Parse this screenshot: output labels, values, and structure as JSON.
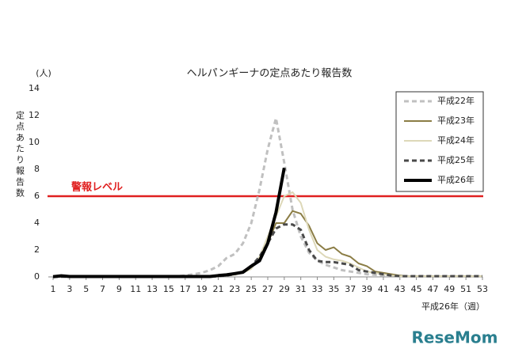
{
  "chart_data": {
    "type": "line",
    "title": "ヘルパンギーナの定点あたり報告数",
    "y_unit": "(人)",
    "y_label": "定点あたり報告数",
    "x_label": "平成26年（週）",
    "watermark": "ReseMom",
    "xlim": [
      1,
      53
    ],
    "xticks": [
      1,
      3,
      5,
      7,
      9,
      11,
      13,
      15,
      17,
      19,
      21,
      23,
      25,
      27,
      29,
      31,
      33,
      35,
      37,
      39,
      41,
      43,
      45,
      47,
      49,
      51,
      53
    ],
    "ylim": [
      0,
      14
    ],
    "yticks": [
      0,
      2,
      4,
      6,
      8,
      10,
      12,
      14
    ],
    "threshold": {
      "value": 6,
      "label": "警報レベル",
      "color": "#e02020"
    },
    "x": [
      1,
      2,
      3,
      4,
      5,
      6,
      7,
      8,
      9,
      10,
      11,
      12,
      13,
      14,
      15,
      16,
      17,
      18,
      19,
      20,
      21,
      22,
      23,
      24,
      25,
      26,
      27,
      28,
      29,
      30,
      31,
      32,
      33,
      34,
      35,
      36,
      37,
      38,
      39,
      40,
      41,
      42,
      43,
      44,
      45,
      46,
      47,
      48,
      49,
      50,
      51,
      52,
      53
    ],
    "series": [
      {
        "name": "平成22年",
        "color": "#c0c0c0",
        "dashed": true,
        "width": 3,
        "values": [
          0.05,
          0.05,
          0.05,
          0.05,
          0.05,
          0.05,
          0.05,
          0.05,
          0.05,
          0.05,
          0.05,
          0.05,
          0.05,
          0.05,
          0.05,
          0.05,
          0.1,
          0.2,
          0.3,
          0.5,
          0.8,
          1.4,
          1.7,
          2.5,
          4.0,
          6.5,
          9.5,
          11.8,
          8.5,
          5.0,
          3.0,
          1.8,
          1.2,
          0.9,
          0.7,
          0.5,
          0.4,
          0.3,
          0.2,
          0.15,
          0.1,
          0.1,
          0.05,
          0.05,
          0.05,
          0.05,
          0.05,
          0.05,
          0.05,
          0.05,
          0.05,
          0.05,
          0.05
        ]
      },
      {
        "name": "平成23年",
        "color": "#8b7d45",
        "dashed": false,
        "width": 2,
        "values": [
          0.02,
          0.02,
          0.02,
          0.02,
          0.02,
          0.02,
          0.02,
          0.02,
          0.02,
          0.02,
          0.02,
          0.02,
          0.02,
          0.02,
          0.02,
          0.02,
          0.02,
          0.02,
          0.02,
          0.02,
          0.05,
          0.1,
          0.2,
          0.3,
          0.7,
          1.3,
          2.5,
          4.0,
          4.0,
          4.9,
          4.7,
          3.8,
          2.5,
          2.0,
          2.2,
          1.7,
          1.5,
          1.0,
          0.8,
          0.4,
          0.3,
          0.2,
          0.1,
          0.05,
          0.05,
          0.05,
          0.05,
          0.05,
          0.05,
          0.05,
          0.05,
          0.05,
          0.05
        ]
      },
      {
        "name": "平成24年",
        "color": "#ddd8b8",
        "dashed": false,
        "width": 2,
        "values": [
          0.02,
          0.02,
          0.02,
          0.02,
          0.02,
          0.02,
          0.02,
          0.02,
          0.02,
          0.02,
          0.02,
          0.02,
          0.02,
          0.02,
          0.02,
          0.02,
          0.02,
          0.02,
          0.02,
          0.02,
          0.05,
          0.1,
          0.15,
          0.3,
          0.6,
          1.5,
          3.0,
          4.5,
          6.0,
          6.3,
          5.5,
          3.5,
          2.0,
          1.5,
          1.3,
          1.2,
          1.0,
          0.7,
          0.4,
          0.3,
          0.2,
          0.1,
          0.05,
          0.05,
          0.05,
          0.05,
          0.05,
          0.05,
          0.05,
          0.05,
          0.05,
          0.05,
          0.05
        ]
      },
      {
        "name": "平成25年",
        "color": "#4a4a4a",
        "dashed": true,
        "width": 3,
        "values": [
          0.02,
          0.02,
          0.02,
          0.02,
          0.02,
          0.02,
          0.02,
          0.02,
          0.02,
          0.02,
          0.02,
          0.02,
          0.02,
          0.02,
          0.02,
          0.02,
          0.02,
          0.02,
          0.02,
          0.02,
          0.05,
          0.1,
          0.2,
          0.4,
          0.8,
          1.5,
          2.5,
          3.6,
          3.9,
          3.9,
          3.5,
          2.0,
          1.2,
          1.1,
          1.1,
          1.0,
          0.9,
          0.5,
          0.4,
          0.3,
          0.2,
          0.1,
          0.05,
          0.05,
          0.05,
          0.05,
          0.05,
          0.05,
          0.05,
          0.05,
          0.05,
          0.05,
          0.05
        ]
      },
      {
        "name": "平成26年",
        "color": "#000000",
        "dashed": false,
        "width": 4,
        "values": [
          0.02,
          0.08,
          0.03,
          0.03,
          0.03,
          0.03,
          0.03,
          0.03,
          0.03,
          0.03,
          0.03,
          0.03,
          0.03,
          0.03,
          0.03,
          0.03,
          0.03,
          0.03,
          0.03,
          0.03,
          0.1,
          0.15,
          0.25,
          0.35,
          0.8,
          1.2,
          2.5,
          4.8,
          8.1,
          null,
          null,
          null,
          null,
          null,
          null,
          null,
          null,
          null,
          null,
          null,
          null,
          null,
          null,
          null,
          null,
          null,
          null,
          null,
          null,
          null,
          null,
          null,
          null
        ]
      }
    ]
  }
}
